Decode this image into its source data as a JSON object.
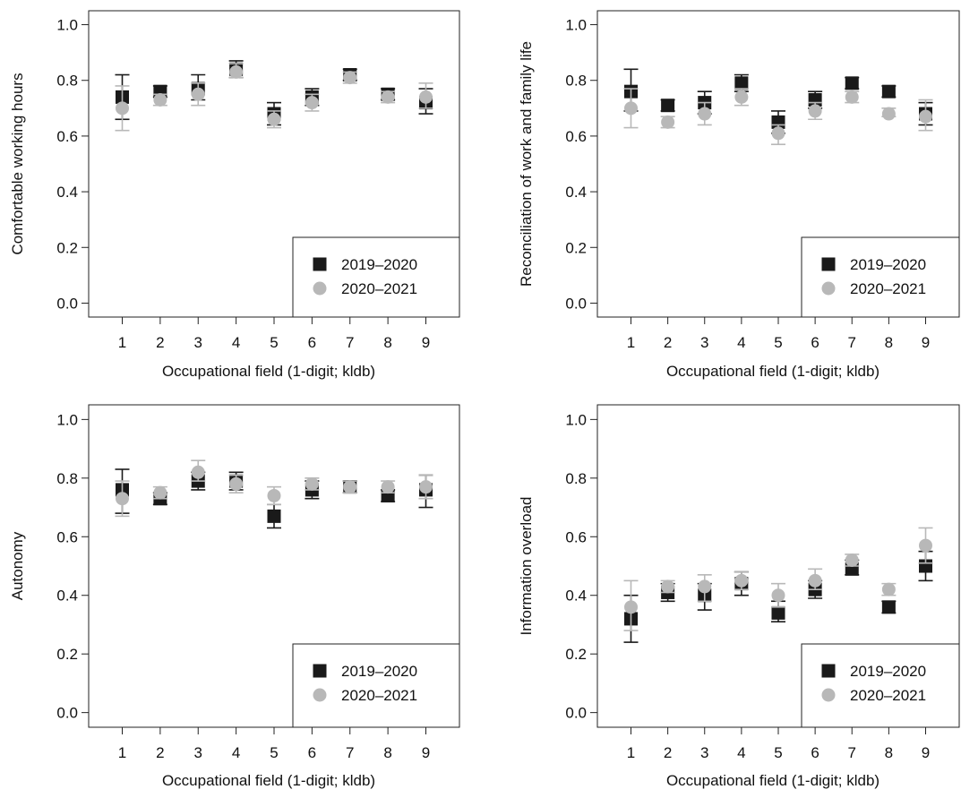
{
  "colors": {
    "series1": "#1a1a1a",
    "series2": "#b8b8b8",
    "frame": "#222222"
  },
  "chart_data": [
    {
      "type": "scatter",
      "ylabel": "Comfortable working hours",
      "xlabel": "Occupational field (1-digit; kldb)",
      "x": [
        1,
        2,
        3,
        4,
        5,
        6,
        7,
        8,
        9
      ],
      "ylim": [
        -0.05,
        1.05
      ],
      "yticks": [
        "0.0",
        "0.2",
        "0.4",
        "0.6",
        "0.8",
        "1.0"
      ],
      "legend_position": "bottom-right",
      "series": [
        {
          "name": "2019–2020",
          "marker": "square",
          "values": [
            0.74,
            0.76,
            0.77,
            0.84,
            0.68,
            0.74,
            0.82,
            0.75,
            0.72
          ],
          "err_low": [
            0.66,
            0.74,
            0.73,
            0.81,
            0.64,
            0.71,
            0.8,
            0.73,
            0.68
          ],
          "err_high": [
            0.82,
            0.78,
            0.82,
            0.87,
            0.72,
            0.77,
            0.84,
            0.77,
            0.77
          ]
        },
        {
          "name": "2020–2021",
          "marker": "circle",
          "values": [
            0.7,
            0.73,
            0.75,
            0.83,
            0.66,
            0.72,
            0.81,
            0.74,
            0.74
          ],
          "err_low": [
            0.62,
            0.71,
            0.71,
            0.81,
            0.63,
            0.69,
            0.79,
            0.72,
            0.7
          ],
          "err_high": [
            0.78,
            0.75,
            0.79,
            0.86,
            0.69,
            0.75,
            0.83,
            0.76,
            0.79
          ]
        }
      ]
    },
    {
      "type": "scatter",
      "ylabel": "Reconciliation of work and family life",
      "xlabel": "Occupational field (1-digit; kldb)",
      "x": [
        1,
        2,
        3,
        4,
        5,
        6,
        7,
        8,
        9
      ],
      "ylim": [
        -0.05,
        1.05
      ],
      "yticks": [
        "0.0",
        "0.2",
        "0.4",
        "0.6",
        "0.8",
        "1.0"
      ],
      "legend_position": "bottom-right",
      "series": [
        {
          "name": "2019–2020",
          "marker": "square",
          "values": [
            0.76,
            0.71,
            0.72,
            0.79,
            0.65,
            0.73,
            0.79,
            0.76,
            0.68
          ],
          "err_low": [
            0.69,
            0.69,
            0.68,
            0.76,
            0.61,
            0.7,
            0.77,
            0.74,
            0.64
          ],
          "err_high": [
            0.84,
            0.73,
            0.76,
            0.82,
            0.69,
            0.76,
            0.81,
            0.78,
            0.72
          ]
        },
        {
          "name": "2020–2021",
          "marker": "circle",
          "values": [
            0.7,
            0.65,
            0.68,
            0.74,
            0.61,
            0.69,
            0.74,
            0.68,
            0.67
          ],
          "err_low": [
            0.63,
            0.63,
            0.64,
            0.71,
            0.57,
            0.66,
            0.72,
            0.67,
            0.62
          ],
          "err_high": [
            0.77,
            0.67,
            0.72,
            0.77,
            0.64,
            0.72,
            0.76,
            0.7,
            0.73
          ]
        }
      ]
    },
    {
      "type": "scatter",
      "ylabel": "Autonomy",
      "xlabel": "Occupational field (1-digit; kldb)",
      "x": [
        1,
        2,
        3,
        4,
        5,
        6,
        7,
        8,
        9
      ],
      "ylim": [
        -0.05,
        1.05
      ],
      "yticks": [
        "0.0",
        "0.2",
        "0.4",
        "0.6",
        "0.8",
        "1.0"
      ],
      "legend_position": "bottom-right",
      "series": [
        {
          "name": "2019–2020",
          "marker": "square",
          "values": [
            0.76,
            0.73,
            0.79,
            0.79,
            0.67,
            0.76,
            0.77,
            0.74,
            0.76
          ],
          "err_low": [
            0.68,
            0.71,
            0.76,
            0.76,
            0.63,
            0.73,
            0.75,
            0.72,
            0.7
          ],
          "err_high": [
            0.83,
            0.75,
            0.82,
            0.82,
            0.71,
            0.79,
            0.79,
            0.76,
            0.81
          ]
        },
        {
          "name": "2020–2021",
          "marker": "circle",
          "values": [
            0.73,
            0.75,
            0.82,
            0.78,
            0.74,
            0.78,
            0.77,
            0.77,
            0.77
          ],
          "err_low": [
            0.67,
            0.73,
            0.79,
            0.75,
            0.71,
            0.76,
            0.75,
            0.75,
            0.73
          ],
          "err_high": [
            0.79,
            0.77,
            0.86,
            0.81,
            0.77,
            0.8,
            0.79,
            0.79,
            0.81
          ]
        }
      ]
    },
    {
      "type": "scatter",
      "ylabel": "Information overload",
      "xlabel": "Occupational field (1-digit; kldb)",
      "x": [
        1,
        2,
        3,
        4,
        5,
        6,
        7,
        8,
        9
      ],
      "ylim": [
        -0.05,
        1.05
      ],
      "yticks": [
        "0.0",
        "0.2",
        "0.4",
        "0.6",
        "0.8",
        "1.0"
      ],
      "legend_position": "bottom-right",
      "series": [
        {
          "name": "2019–2020",
          "marker": "square",
          "values": [
            0.32,
            0.41,
            0.4,
            0.44,
            0.34,
            0.42,
            0.49,
            0.36,
            0.5
          ],
          "err_low": [
            0.24,
            0.38,
            0.35,
            0.4,
            0.31,
            0.39,
            0.47,
            0.34,
            0.45
          ],
          "err_high": [
            0.4,
            0.44,
            0.44,
            0.48,
            0.38,
            0.45,
            0.52,
            0.38,
            0.55
          ]
        },
        {
          "name": "2020–2021",
          "marker": "circle",
          "values": [
            0.36,
            0.43,
            0.43,
            0.45,
            0.4,
            0.45,
            0.52,
            0.42,
            0.57
          ],
          "err_low": [
            0.28,
            0.41,
            0.38,
            0.42,
            0.36,
            0.42,
            0.5,
            0.4,
            0.51
          ],
          "err_high": [
            0.45,
            0.45,
            0.47,
            0.48,
            0.44,
            0.49,
            0.54,
            0.44,
            0.63
          ]
        }
      ]
    }
  ]
}
